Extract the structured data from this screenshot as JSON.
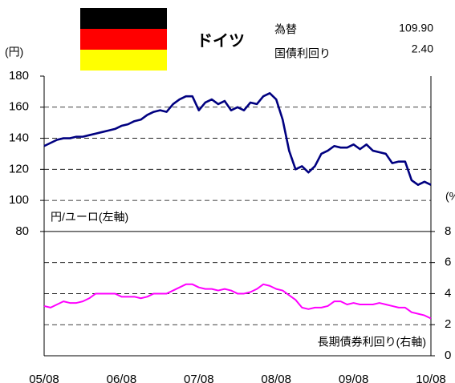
{
  "header": {
    "country": "ドイツ",
    "fx_label": "為替",
    "fx_value": "109.90",
    "yield_label": "国債利回り",
    "yield_value": "2.40"
  },
  "chart_data": {
    "type": "line",
    "ylabel": "(円)",
    "y2label": "(%",
    "x": [
      "05/08",
      "05/09",
      "05/10",
      "05/11",
      "05/12",
      "06/01",
      "06/02",
      "06/03",
      "06/04",
      "06/05",
      "06/06",
      "06/07",
      "06/08",
      "06/09",
      "06/10",
      "06/11",
      "06/12",
      "07/01",
      "07/02",
      "07/03",
      "07/04",
      "07/05",
      "07/06",
      "07/07",
      "07/08",
      "07/09",
      "07/10",
      "07/11",
      "07/12",
      "08/01",
      "08/02",
      "08/03",
      "08/04",
      "08/05",
      "08/06",
      "08/07",
      "08/08",
      "08/09",
      "08/10",
      "08/11",
      "08/12",
      "09/01",
      "09/02",
      "09/03",
      "09/04",
      "09/05",
      "09/06",
      "09/07",
      "09/08",
      "09/09",
      "09/10",
      "09/11",
      "09/12",
      "10/01",
      "10/02",
      "10/03",
      "10/04",
      "10/05",
      "10/06",
      "10/07",
      "10/08"
    ],
    "xtick_index": [
      0,
      12,
      24,
      36,
      48,
      60
    ],
    "series": [
      {
        "name": "円/ユーロ(左軸)",
        "color": "#000080",
        "axis": "y",
        "values": [
          135,
          137,
          139,
          140,
          140,
          141,
          141,
          142,
          143,
          144,
          145,
          146,
          148,
          149,
          151,
          152,
          155,
          157,
          158,
          157,
          162,
          165,
          167,
          167,
          158,
          163,
          165,
          162,
          164,
          158,
          160,
          158,
          163,
          162,
          167,
          169,
          165,
          152,
          132,
          120,
          122,
          118,
          122,
          130,
          132,
          135,
          134,
          134,
          136,
          133,
          136,
          132,
          131,
          130,
          124,
          125,
          125,
          113,
          110,
          112,
          110
        ]
      },
      {
        "name": "長期債券利回り(右軸)",
        "color": "#ff00ff",
        "axis": "y2",
        "values": [
          3.2,
          3.1,
          3.3,
          3.5,
          3.4,
          3.4,
          3.5,
          3.7,
          4.0,
          4.0,
          4.0,
          4.0,
          3.8,
          3.8,
          3.8,
          3.7,
          3.8,
          4.0,
          4.0,
          4.0,
          4.2,
          4.4,
          4.6,
          4.6,
          4.4,
          4.3,
          4.3,
          4.2,
          4.3,
          4.2,
          4.0,
          4.0,
          4.1,
          4.3,
          4.6,
          4.5,
          4.3,
          4.2,
          3.9,
          3.6,
          3.1,
          3.0,
          3.1,
          3.1,
          3.2,
          3.5,
          3.5,
          3.3,
          3.4,
          3.3,
          3.3,
          3.3,
          3.4,
          3.3,
          3.2,
          3.1,
          3.1,
          2.8,
          2.7,
          2.6,
          2.4
        ]
      }
    ],
    "ylim": [
      0,
      180
    ],
    "yticks": [
      80,
      100,
      120,
      140,
      160,
      180
    ],
    "y2lim": [
      0,
      18
    ],
    "y2ticks": [
      0,
      2,
      4,
      6,
      8
    ],
    "grid": true
  }
}
